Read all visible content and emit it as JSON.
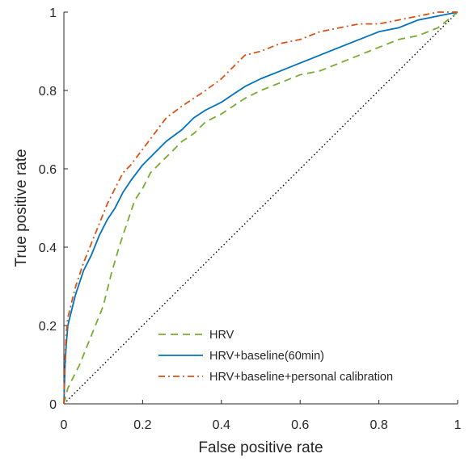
{
  "chart_data": {
    "type": "line",
    "title": "",
    "xlabel": "False positive rate",
    "ylabel": "True positive rate",
    "xlim": [
      0,
      1
    ],
    "ylim": [
      0,
      1
    ],
    "x_ticks": [
      0,
      0.2,
      0.4,
      0.6,
      0.8,
      1
    ],
    "y_ticks": [
      0,
      0.2,
      0.4,
      0.6,
      0.8,
      1
    ],
    "x_tick_labels": [
      "0",
      "0.2",
      "0.4",
      "0.6",
      "0.8",
      "1"
    ],
    "y_tick_labels": [
      "0",
      "0.2",
      "0.4",
      "0.6",
      "0.8",
      "1"
    ],
    "grid": false,
    "legend_position": "bottom-right",
    "series": [
      {
        "name": "HRV",
        "style": "dashed",
        "color": "#77AC30",
        "x": [
          0,
          0.005,
          0.01,
          0.02,
          0.04,
          0.06,
          0.08,
          0.1,
          0.12,
          0.14,
          0.16,
          0.18,
          0.2,
          0.22,
          0.25,
          0.28,
          0.3,
          0.33,
          0.36,
          0.4,
          0.43,
          0.46,
          0.5,
          0.55,
          0.6,
          0.65,
          0.7,
          0.75,
          0.8,
          0.85,
          0.9,
          0.95,
          1.0
        ],
        "y": [
          0,
          0.02,
          0.04,
          0.06,
          0.1,
          0.15,
          0.2,
          0.25,
          0.33,
          0.4,
          0.46,
          0.52,
          0.55,
          0.59,
          0.62,
          0.65,
          0.67,
          0.69,
          0.72,
          0.74,
          0.76,
          0.78,
          0.8,
          0.82,
          0.84,
          0.85,
          0.87,
          0.89,
          0.91,
          0.93,
          0.94,
          0.96,
          1.0
        ]
      },
      {
        "name": "HRV+baseline(60min)",
        "style": "solid",
        "color": "#0072BD",
        "x": [
          0,
          0.003,
          0.006,
          0.01,
          0.02,
          0.03,
          0.05,
          0.07,
          0.09,
          0.11,
          0.13,
          0.15,
          0.17,
          0.2,
          0.23,
          0.26,
          0.3,
          0.33,
          0.36,
          0.4,
          0.43,
          0.46,
          0.5,
          0.55,
          0.6,
          0.65,
          0.7,
          0.75,
          0.8,
          0.85,
          0.9,
          0.95,
          1.0
        ],
        "y": [
          0,
          0.1,
          0.15,
          0.2,
          0.24,
          0.28,
          0.34,
          0.38,
          0.43,
          0.47,
          0.5,
          0.54,
          0.57,
          0.61,
          0.64,
          0.67,
          0.7,
          0.73,
          0.75,
          0.77,
          0.79,
          0.81,
          0.83,
          0.85,
          0.87,
          0.89,
          0.91,
          0.93,
          0.95,
          0.96,
          0.98,
          0.99,
          1.0
        ]
      },
      {
        "name": "HRV+baseline+personal calibration",
        "style": "dashdot",
        "color": "#D95319",
        "x": [
          0,
          0.003,
          0.006,
          0.01,
          0.02,
          0.03,
          0.05,
          0.07,
          0.09,
          0.11,
          0.13,
          0.15,
          0.17,
          0.2,
          0.23,
          0.26,
          0.3,
          0.33,
          0.36,
          0.4,
          0.43,
          0.46,
          0.5,
          0.55,
          0.6,
          0.65,
          0.7,
          0.75,
          0.8,
          0.85,
          0.9,
          0.95,
          1.0
        ],
        "y": [
          0,
          0.12,
          0.18,
          0.22,
          0.26,
          0.3,
          0.36,
          0.41,
          0.46,
          0.51,
          0.55,
          0.59,
          0.61,
          0.65,
          0.69,
          0.73,
          0.76,
          0.78,
          0.8,
          0.83,
          0.86,
          0.89,
          0.9,
          0.92,
          0.93,
          0.95,
          0.96,
          0.97,
          0.97,
          0.98,
          0.99,
          1.0,
          1.0
        ]
      }
    ],
    "reference_line": {
      "style": "dotted",
      "color": "#000000",
      "x": [
        0,
        1
      ],
      "y": [
        0,
        1
      ]
    }
  }
}
